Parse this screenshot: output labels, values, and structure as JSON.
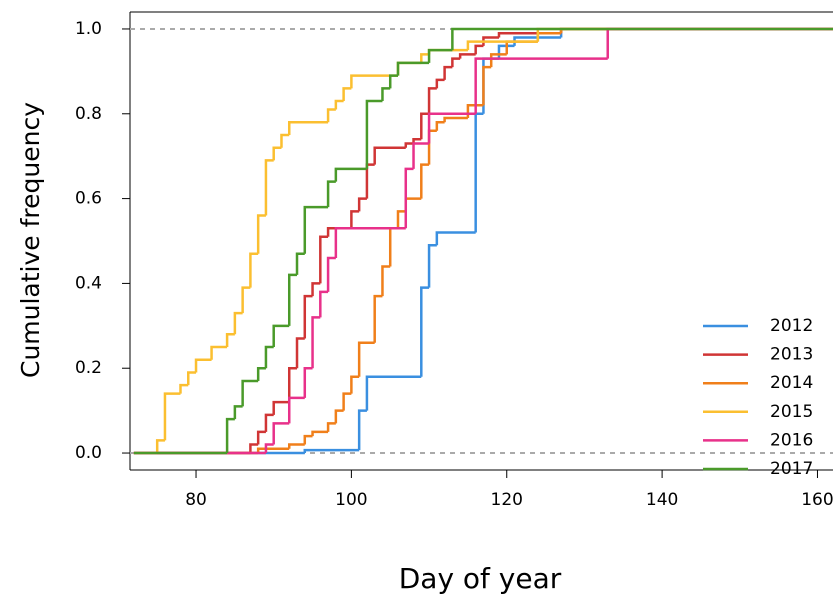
{
  "chart_data": {
    "type": "step",
    "xlabel": "Day of year",
    "ylabel": "Cumulative frequency",
    "xlim": [
      71.5,
      162
    ],
    "ylim": [
      -0.04,
      1.04
    ],
    "xticks": [
      80,
      100,
      120,
      140,
      160
    ],
    "yticks": [
      {
        "value": 0,
        "label": "0.0"
      },
      {
        "value": 0.2,
        "label": "0.2"
      },
      {
        "value": 0.4,
        "label": "0.4"
      },
      {
        "value": 0.6,
        "label": "0.6"
      },
      {
        "value": 0.8,
        "label": "0.8"
      },
      {
        "value": 1,
        "label": "1.0"
      }
    ],
    "reference_lines": [
      0,
      1
    ],
    "legend": "bottom-right",
    "series": [
      {
        "name": "2012",
        "color": "#3a8fe0",
        "x": [
          72,
          94,
          101,
          102,
          109,
          110,
          111,
          116,
          117,
          119,
          121,
          127
        ],
        "values": [
          0,
          0.007,
          0.1,
          0.18,
          0.39,
          0.49,
          0.52,
          0.8,
          0.93,
          0.96,
          0.98,
          1.0
        ]
      },
      {
        "name": "2013",
        "color": "#d03535",
        "x": [
          72,
          87,
          88,
          89,
          90,
          92,
          93,
          94,
          95,
          96,
          97,
          100,
          101,
          102,
          103,
          107,
          108,
          109,
          110,
          111,
          112,
          113,
          114,
          116,
          117,
          119,
          127
        ],
        "values": [
          0,
          0.02,
          0.05,
          0.09,
          0.12,
          0.2,
          0.27,
          0.37,
          0.4,
          0.51,
          0.53,
          0.57,
          0.6,
          0.68,
          0.72,
          0.73,
          0.74,
          0.8,
          0.86,
          0.88,
          0.91,
          0.93,
          0.94,
          0.96,
          0.98,
          0.99,
          1.0
        ]
      },
      {
        "name": "2014",
        "color": "#f07f1a",
        "x": [
          72,
          88,
          92,
          94,
          95,
          97,
          98,
          99,
          100,
          101,
          103,
          104,
          105,
          106,
          107,
          109,
          110,
          111,
          112,
          115,
          117,
          118,
          120,
          124,
          127
        ],
        "values": [
          0,
          0.01,
          0.02,
          0.04,
          0.05,
          0.07,
          0.1,
          0.14,
          0.18,
          0.26,
          0.37,
          0.44,
          0.53,
          0.57,
          0.6,
          0.68,
          0.76,
          0.78,
          0.79,
          0.82,
          0.91,
          0.94,
          0.97,
          0.99,
          1.0
        ]
      },
      {
        "name": "2015",
        "color": "#fbbf30",
        "x": [
          72,
          75,
          76,
          78,
          79,
          80,
          82,
          84,
          85,
          86,
          87,
          88,
          89,
          90,
          91,
          92,
          97,
          98,
          99,
          100,
          106,
          109,
          110,
          115,
          124
        ],
        "values": [
          0,
          0.03,
          0.14,
          0.16,
          0.19,
          0.22,
          0.25,
          0.28,
          0.33,
          0.39,
          0.47,
          0.56,
          0.69,
          0.72,
          0.75,
          0.78,
          0.81,
          0.83,
          0.86,
          0.89,
          0.92,
          0.94,
          0.95,
          0.97,
          1.0
        ]
      },
      {
        "name": "2016",
        "color": "#e8318a",
        "x": [
          72,
          89,
          90,
          92,
          94,
          95,
          96,
          97,
          98,
          107,
          108,
          110,
          116,
          133
        ],
        "values": [
          0,
          0.02,
          0.07,
          0.13,
          0.2,
          0.32,
          0.38,
          0.46,
          0.53,
          0.67,
          0.73,
          0.8,
          0.93,
          1.0
        ]
      },
      {
        "name": "2017",
        "color": "#4a9a2a",
        "x": [
          72,
          84,
          85,
          86,
          88,
          89,
          90,
          92,
          93,
          94,
          97,
          98,
          102,
          104,
          105,
          106,
          110,
          113
        ],
        "values": [
          0,
          0.08,
          0.11,
          0.17,
          0.2,
          0.25,
          0.3,
          0.42,
          0.47,
          0.58,
          0.64,
          0.67,
          0.83,
          0.86,
          0.89,
          0.92,
          0.95,
          1.0
        ]
      }
    ]
  }
}
